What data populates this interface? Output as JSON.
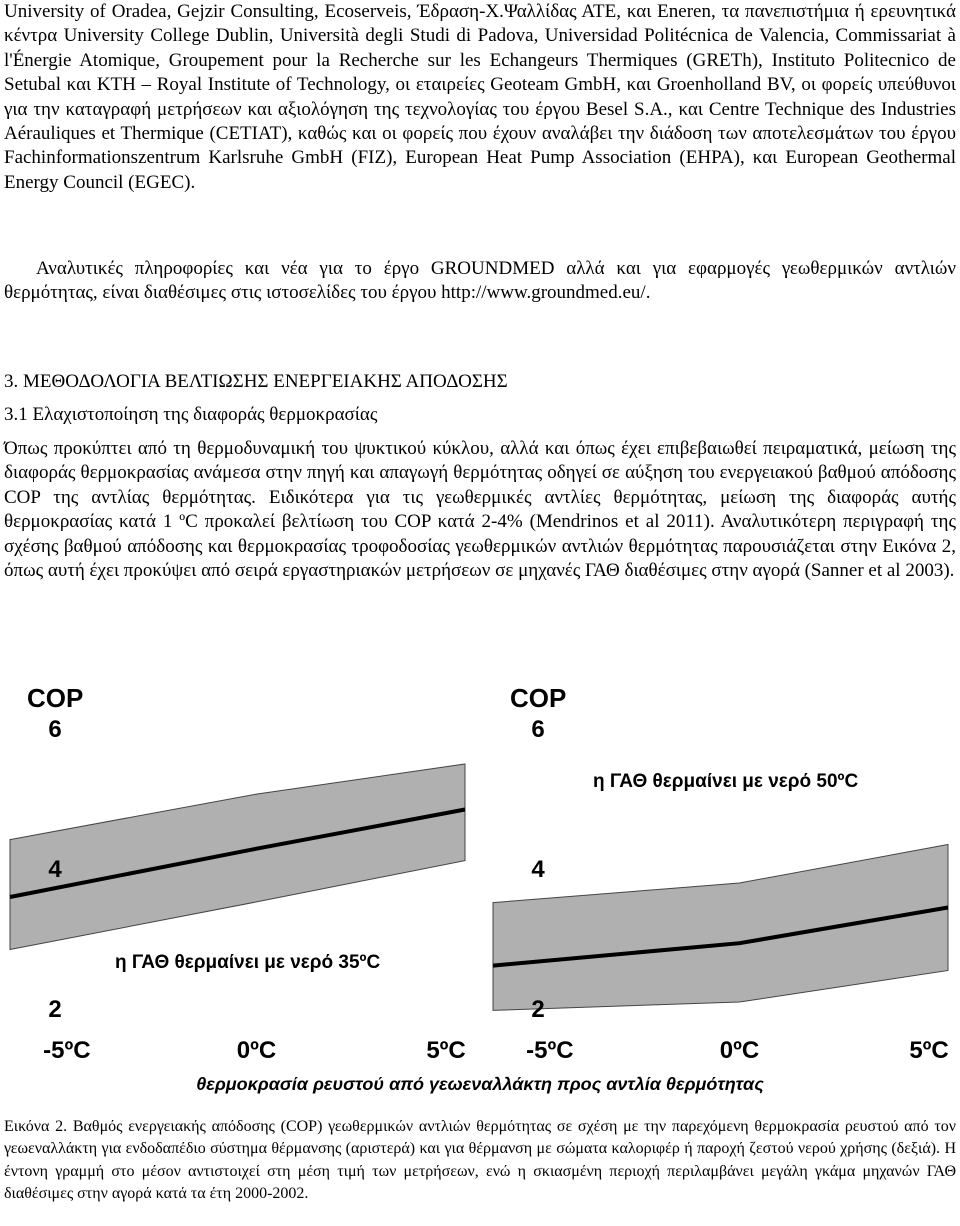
{
  "paragraphs": [
    "University of Oradea, Gejzir Consulting, Ecoserveis, Έδραση-Χ.Ψαλλίδας ΑΤΕ, και Eneren, τα πανεπιστήμια ή ερευνητικά κέντρα University College Dublin, Università degli Studi di Padova, Universidad Politécnica de Valencia, Commissariat à l'Énergie Atomique, Groupement pour la Recherche sur les Echangeurs Thermiques (GRETh), Instituto Politecnico de Setubal και KTH – Royal Institute of Technology, οι εταιρείες Geoteam GmbH, και Groenholland BV, οι φορείς υπεύθυνοι για την καταγραφή μετρήσεων και αξιολόγηση της τεχνολογίας του έργου Besel S.A., και Centre Technique des Industries Aérauliques et Thermique (CETIAT), καθώς και οι φορείς που έχουν αναλάβει την διάδοση των αποτελεσμάτων του έργου Fachinformationszentrum Karlsruhe GmbH (FIZ), European Heat Pump Association (EHPA), και European Geothermal Energy Council (EGEC).",
    "Αναλυτικές πληροφορίες και νέα για το έργο GROUNDMED αλλά και για εφαρμογές γεωθερμικών αντλιών θερμότητας, είναι διαθέσιμες στις ιστοσελίδες του έργου http://www.groundmed.eu/."
  ],
  "heading": "3. ΜΕΘΟΔΟΛΟΓΙΑ ΒΕΛΤΙΩΣΗΣ ΕΝΕΡΓΕΙΑΚΗΣ ΑΠΟΔΟΣΗΣ",
  "subheading": "3.1 Ελαχιστοποίηση της διαφοράς θερμοκρασίας",
  "section_paragraph": "Όπως προκύπτει από τη θερμοδυναμική του ψυκτικού κύκλου, αλλά και όπως έχει επιβεβαιωθεί πειραματικά, μείωση της διαφοράς θερμοκρασίας ανάμεσα στην πηγή και απαγωγή θερμότητας οδηγεί σε αύξηση του ενεργειακού βαθμού απόδοσης COP της αντλίας θερμότητας. Ειδικότερα για τις γεωθερμικές αντλίες θερμότητας, μείωση της διαφοράς αυτής θερμοκρασίας κατά 1 ºC προκαλεί βελτίωση του COP κατά 2-4% (Mendrinos et al 2011). Αναλυτικότερη περιγραφή της σχέσης βαθμού απόδοσης και θερμοκρασίας τροφοδοσίας γεωθερμικών αντλιών θερμότητας παρουσιάζεται στην Εικόνα 2, όπως αυτή έχει προκύψει από σειρά εργαστηριακών μετρήσεων σε μηχανές ΓΑΘ διαθέσιμες στην αγορά (Sanner et al 2003).",
  "chart_data": [
    {
      "type": "line",
      "ylabel": "COP",
      "annotation": "η ΓΑΘ θερμαίνει με νερό 35ºC",
      "x": [
        -6.5,
        0,
        5.5
      ],
      "xlim": [
        -6.5,
        5.5
      ],
      "ylim": [
        1.7,
        6.7
      ],
      "yticks": [
        2,
        4,
        6
      ],
      "xticks": [
        {
          "value": -5,
          "label": "-5ºC"
        },
        {
          "value": 0,
          "label": "0ºC"
        },
        {
          "value": 5,
          "label": "5ºC"
        }
      ],
      "series": [
        {
          "color": "#000000",
          "values": [
            3.6,
            4.29,
            4.85
          ]
        }
      ],
      "band": {
        "color": "#b0b0b0",
        "upper": [
          4.42,
          5.07,
          5.5
        ],
        "lower": [
          2.85,
          3.53,
          4.12
        ]
      }
    },
    {
      "type": "line",
      "ylabel": "COP",
      "annotation": "η ΓΑΘ θερμαίνει με νερό 50ºC",
      "x": [
        -6.5,
        0,
        5.5
      ],
      "xlim": [
        -6.5,
        5.5
      ],
      "ylim": [
        1.7,
        6.7
      ],
      "yticks": [
        2,
        4,
        6
      ],
      "xticks": [
        {
          "value": -5,
          "label": "-5ºC"
        },
        {
          "value": 0,
          "label": "0ºC"
        },
        {
          "value": 5,
          "label": "5ºC"
        }
      ],
      "series": [
        {
          "color": "#000000",
          "values": [
            2.62,
            2.94,
            3.45
          ]
        }
      ],
      "band": {
        "color": "#b0b0b0",
        "upper": [
          3.52,
          3.8,
          4.35
        ],
        "lower": [
          1.98,
          2.1,
          2.55
        ]
      }
    }
  ],
  "figure": {
    "xlabel": "θερμοκρασία ρευστού από γεωεναλλάκτη προς αντλία θερμότητας",
    "caption": "Εικόνα 2. Βαθμός ενεργειακής απόδοσης (COP) γεωθερμικών αντλιών θερμότητας σε σχέση με την παρεχόμενη θερμοκρασία ρευστού από τον γεωεναλλάκτη για ενδοδαπέδιο σύστημα θέρμανσης (αριστερά) και για θέρμανση με σώματα καλοριφέρ ή παροχή ζεστού νερού χρήσης (δεξιά). Η έντονη γραμμή στο μέσον αντιστοιχεί στη μέση τιμή των μετρήσεων, ενώ η σκιασμένη περιοχή περιλαμβάνει μεγάλη γκάμα μηχανών ΓΑΘ διαθέσιμες στην αγορά κατά τα έτη 2000-2002."
  }
}
